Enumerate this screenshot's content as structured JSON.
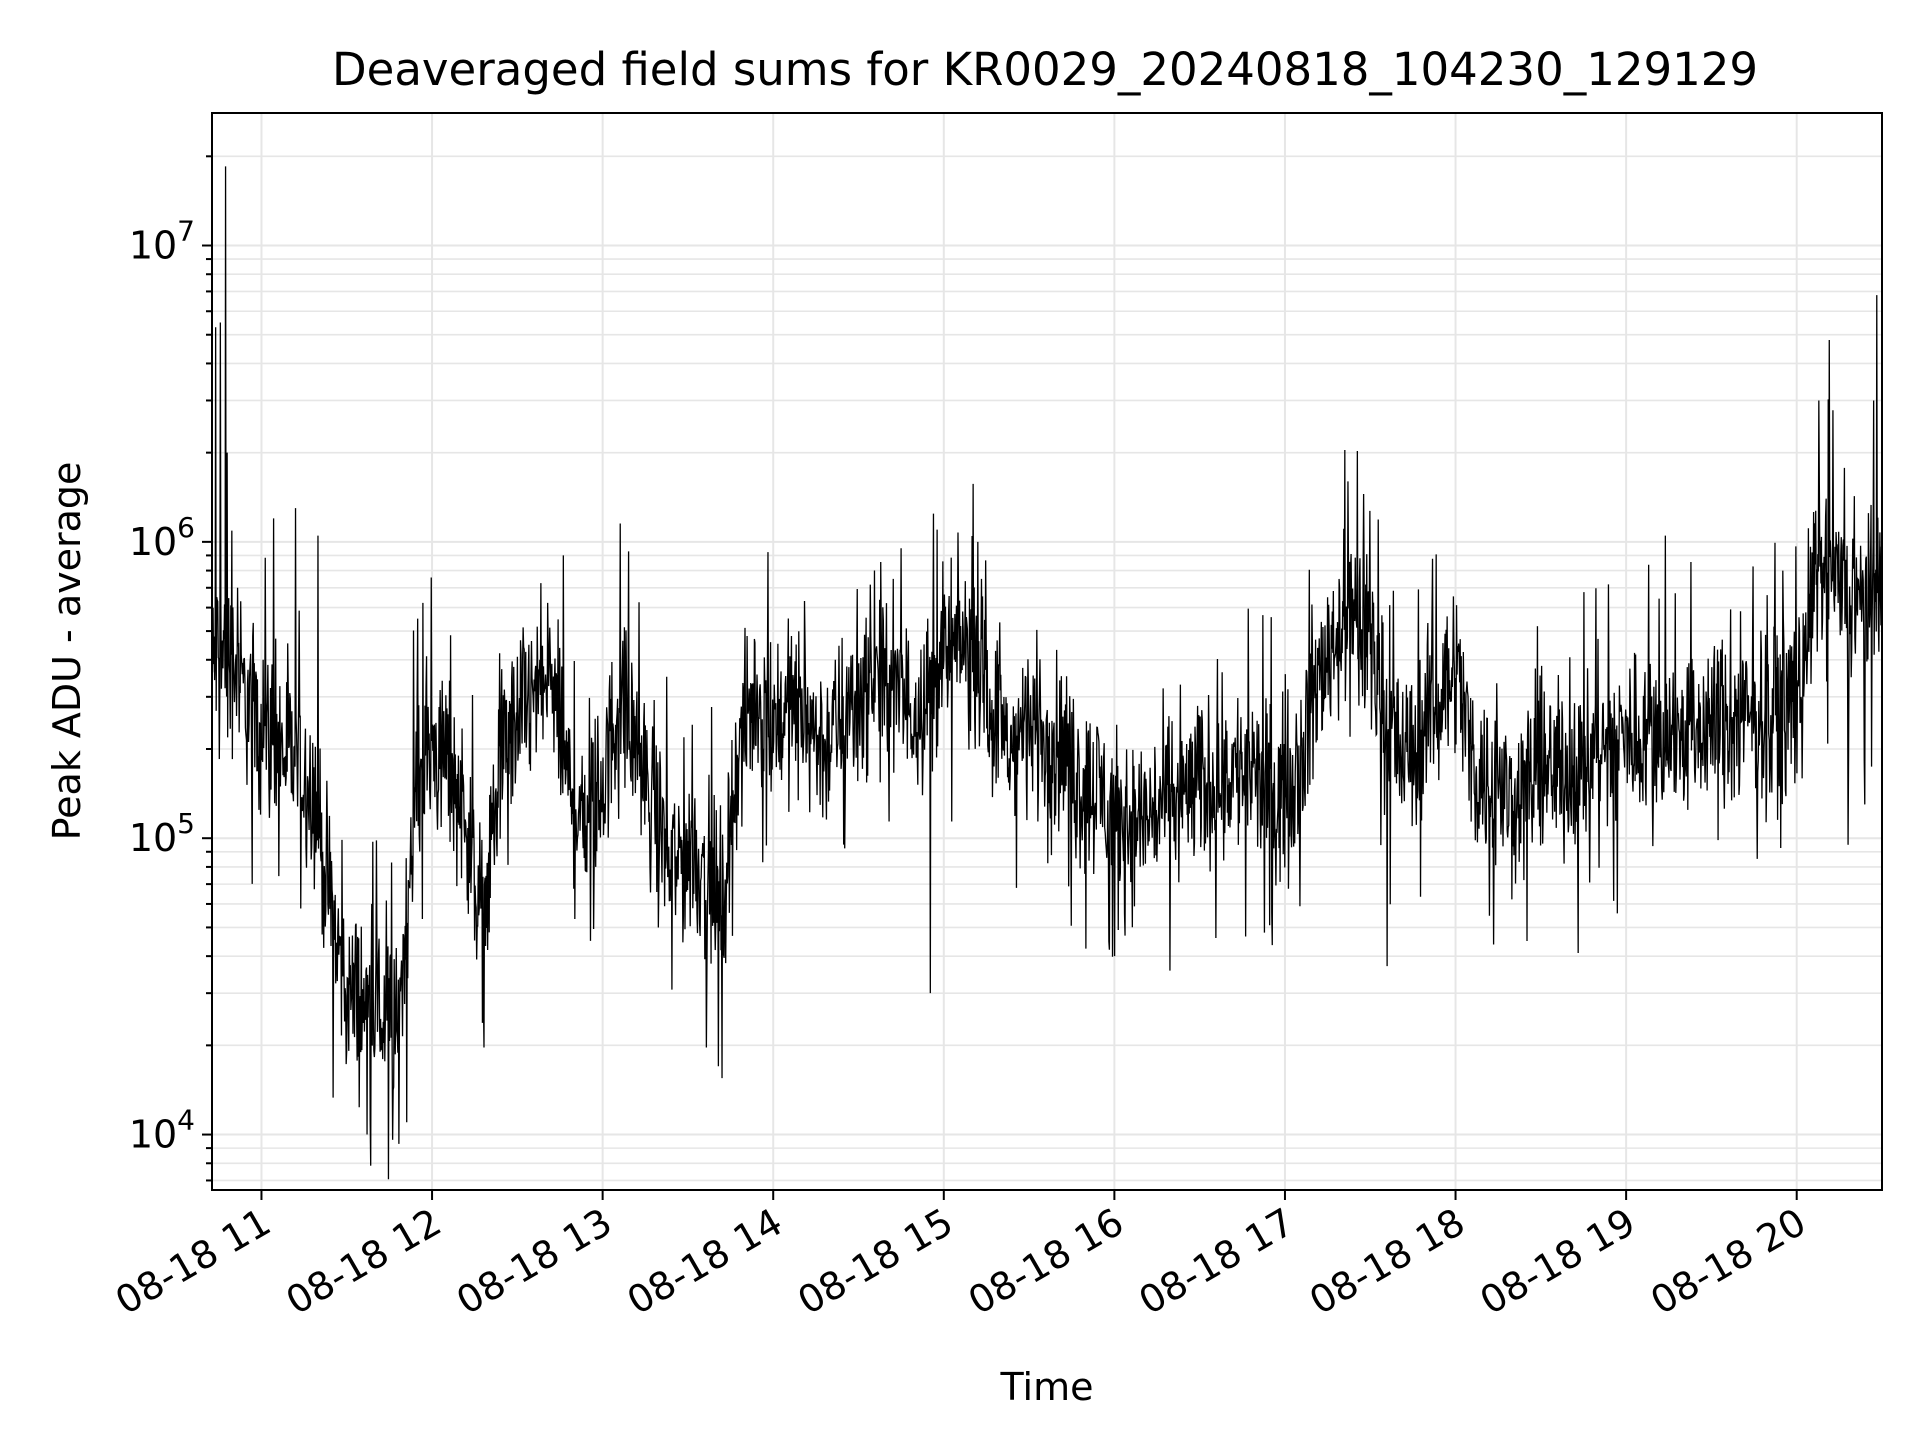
{
  "chart_data": {
    "type": "line",
    "title": "Deaveraged field sums for KR0029_20240818_104230_129129",
    "xlabel": "Time",
    "ylabel": "Peak ADU - average",
    "x_tick_labels": [
      "08-18 11",
      "08-18 12",
      "08-18 13",
      "08-18 14",
      "08-18 15",
      "08-18 16",
      "08-18 17",
      "08-18 18",
      "08-18 19",
      "08-18 20"
    ],
    "x_ticks_hours": [
      11,
      12,
      13,
      14,
      15,
      16,
      17,
      18,
      19,
      20
    ],
    "xlim_hours": [
      10.71,
      20.5
    ],
    "y_scale": "log",
    "ylim": [
      6500,
      28000000
    ],
    "y_ticks": [
      {
        "base": "10",
        "exp": "4",
        "value": 10000
      },
      {
        "base": "10",
        "exp": "5",
        "value": 100000
      },
      {
        "base": "10",
        "exp": "6",
        "value": 1000000
      },
      {
        "base": "10",
        "exp": "7",
        "value": 10000000
      }
    ],
    "grid": true,
    "line_color": "#000000",
    "grid_color": "#e6e6e6",
    "series": [
      {
        "x_hours": [
          10.71,
          10.75,
          10.8,
          10.85,
          10.9,
          11.0,
          11.1,
          11.2,
          11.3,
          11.4,
          11.5,
          11.6,
          11.7,
          11.8,
          11.9,
          12.0,
          12.1,
          12.2,
          12.3,
          12.4,
          12.5,
          12.6,
          12.7,
          12.8,
          12.9,
          13.0,
          13.1,
          13.2,
          13.3,
          13.4,
          13.5,
          13.6,
          13.7,
          13.8,
          13.9,
          14.0,
          14.1,
          14.2,
          14.3,
          14.4,
          14.5,
          14.6,
          14.7,
          14.8,
          14.9,
          15.0,
          15.1,
          15.2,
          15.3,
          15.4,
          15.5,
          15.6,
          15.7,
          15.8,
          15.9,
          16.0,
          16.1,
          16.2,
          16.3,
          16.4,
          16.5,
          16.6,
          16.7,
          16.8,
          16.9,
          17.0,
          17.1,
          17.2,
          17.3,
          17.4,
          17.5,
          17.6,
          17.7,
          17.8,
          17.9,
          18.0,
          18.1,
          18.2,
          18.3,
          18.4,
          18.5,
          18.6,
          18.7,
          18.8,
          18.9,
          19.0,
          19.1,
          19.2,
          19.3,
          19.4,
          19.5,
          19.6,
          19.7,
          19.8,
          19.9,
          20.0,
          20.1,
          20.2,
          20.3,
          20.4,
          20.5
        ],
        "median": [
          350000,
          450000,
          400000,
          380000,
          300000,
          250000,
          200000,
          180000,
          150000,
          60000,
          30000,
          28000,
          25000,
          22000,
          150000,
          200000,
          180000,
          120000,
          50000,
          180000,
          250000,
          300000,
          350000,
          150000,
          120000,
          150000,
          300000,
          200000,
          120000,
          80000,
          90000,
          80000,
          60000,
          200000,
          300000,
          250000,
          280000,
          250000,
          200000,
          250000,
          300000,
          350000,
          300000,
          280000,
          300000,
          400000,
          450000,
          400000,
          250000,
          200000,
          250000,
          220000,
          200000,
          150000,
          150000,
          120000,
          110000,
          120000,
          130000,
          140000,
          150000,
          160000,
          170000,
          160000,
          150000,
          140000,
          200000,
          350000,
          500000,
          550000,
          450000,
          250000,
          180000,
          220000,
          300000,
          400000,
          180000,
          150000,
          140000,
          150000,
          160000,
          170000,
          180000,
          190000,
          200000,
          220000,
          230000,
          230000,
          220000,
          230000,
          250000,
          230000,
          250000,
          260000,
          270000,
          300000,
          700000,
          800000,
          600000,
          650000,
          700000
        ],
        "spikes": [
          {
            "x": 10.73,
            "y": 5300000
          },
          {
            "x": 10.76,
            "y": 5500000
          },
          {
            "x": 10.79,
            "y": 18500000
          },
          {
            "x": 10.8,
            "y": 2000000
          },
          {
            "x": 10.86,
            "y": 700000
          },
          {
            "x": 11.07,
            "y": 1200000
          },
          {
            "x": 11.2,
            "y": 1300000
          },
          {
            "x": 11.33,
            "y": 1050000
          },
          {
            "x": 11.77,
            "y": 9600
          },
          {
            "x": 11.62,
            "y": 10000
          },
          {
            "x": 11.85,
            "y": 11000
          },
          {
            "x": 12.77,
            "y": 900000
          },
          {
            "x": 13.7,
            "y": 15500
          },
          {
            "x": 13.68,
            "y": 17000
          },
          {
            "x": 14.92,
            "y": 30000
          },
          {
            "x": 14.96,
            "y": 1100000
          },
          {
            "x": 15.2,
            "y": 1000000
          },
          {
            "x": 16.0,
            "y": 40000
          },
          {
            "x": 16.88,
            "y": 48000
          },
          {
            "x": 17.37,
            "y": 1600000
          },
          {
            "x": 17.46,
            "y": 1450000
          },
          {
            "x": 17.6,
            "y": 37000
          },
          {
            "x": 18.42,
            "y": 45000
          },
          {
            "x": 18.72,
            "y": 41000
          },
          {
            "x": 19.23,
            "y": 1050000
          },
          {
            "x": 19.92,
            "y": 800000
          },
          {
            "x": 20.13,
            "y": 3000000
          },
          {
            "x": 20.19,
            "y": 4800000
          },
          {
            "x": 20.3,
            "y": 95000
          },
          {
            "x": 20.4,
            "y": 130000
          },
          {
            "x": 20.45,
            "y": 3000000
          },
          {
            "x": 20.47,
            "y": 6800000
          }
        ]
      }
    ]
  }
}
